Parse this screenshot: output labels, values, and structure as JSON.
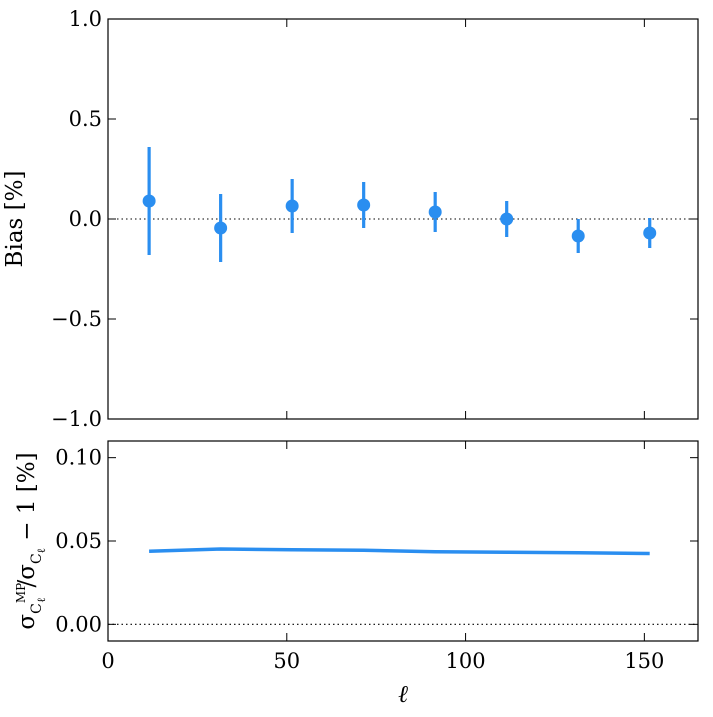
{
  "chart_data": [
    {
      "type": "scatter",
      "panel": "top",
      "error_bars": true,
      "x": [
        11.5,
        31.5,
        51.5,
        71.5,
        91.5,
        111.5,
        131.5,
        151.5
      ],
      "y": [
        0.09,
        -0.045,
        0.065,
        0.07,
        0.035,
        0.0,
        -0.085,
        -0.07
      ],
      "yerr": [
        0.27,
        0.17,
        0.135,
        0.115,
        0.1,
        0.09,
        0.085,
        0.075
      ],
      "xlim": [
        0,
        165
      ],
      "ylim": [
        -1.0,
        1.0
      ],
      "yticks": [
        "1.0",
        "0.5",
        "0.0",
        "−0.5",
        "−1.0"
      ],
      "ytick_values": [
        1.0,
        0.5,
        0.0,
        -0.5,
        -1.0
      ],
      "xticks": [
        0,
        50,
        100,
        150
      ],
      "ylabel": "Bias [%]",
      "reference_line_y": 0.0,
      "color": "#2a8ef0"
    },
    {
      "type": "line",
      "panel": "bottom",
      "x": [
        11.5,
        31.5,
        51.5,
        71.5,
        91.5,
        111.5,
        131.5,
        151.5
      ],
      "y": [
        0.0438,
        0.0452,
        0.0448,
        0.0445,
        0.0435,
        0.0433,
        0.043,
        0.0425
      ],
      "xlim": [
        0,
        165
      ],
      "ylim": [
        -0.01,
        0.11
      ],
      "yticks": [
        "0.10",
        "0.05",
        "0.00"
      ],
      "ytick_values": [
        0.1,
        0.05,
        0.0
      ],
      "xticks": [
        0,
        50,
        100,
        150
      ],
      "xtick_labels": [
        "0",
        "50",
        "100",
        "150"
      ],
      "xlabel": "ℓ",
      "ylabel": {
        "base": "σ",
        "sub1": "C",
        "sup": "MP",
        "sub2": "ℓ",
        "mid": "/σ",
        "sub3": "C",
        "sub4": "ℓ",
        "tail": " − 1 [%]"
      },
      "reference_line_y": 0.0,
      "color": "#2a8ef0"
    }
  ]
}
